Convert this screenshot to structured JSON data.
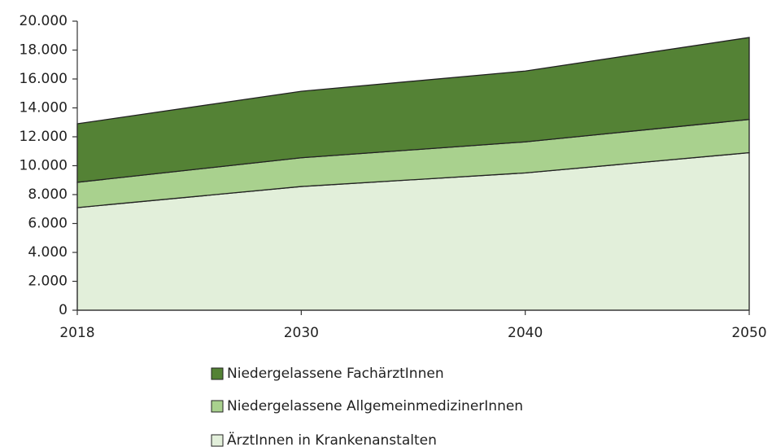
{
  "chart_data": {
    "type": "stacked-area",
    "categories": [
      "2018",
      "2030",
      "2040",
      "2050"
    ],
    "series": [
      {
        "name": "ÄrztInnen in Krankenanstalten",
        "color": "#e2efda",
        "values": [
          7100,
          8560,
          9500,
          10900
        ]
      },
      {
        "name": "Niedergelassene AllgemeinmedizinerInnen",
        "color": "#a9d18e",
        "values": [
          1750,
          1990,
          2150,
          2300
        ]
      },
      {
        "name": "Niedergelassene FachärztInnen",
        "color": "#548235",
        "values": [
          4050,
          4600,
          4900,
          5670
        ]
      }
    ],
    "ylim": [
      0,
      20000
    ],
    "yticks": [
      0,
      {
        "value": 2000,
        "label": "2.000"
      },
      {
        "value": 4000,
        "label": "4.000"
      },
      {
        "value": 6000,
        "label": "6.000"
      },
      {
        "value": 8000,
        "label": "8.000"
      },
      {
        "value": 10000,
        "label": "10.000"
      },
      {
        "value": 12000,
        "label": "12.000"
      },
      {
        "value": 14000,
        "label": "14.000"
      },
      {
        "value": 16000,
        "label": "16.000"
      },
      {
        "value": 18000,
        "label": "18.000"
      },
      {
        "value": 20000,
        "label": "20.000"
      }
    ],
    "grid": false,
    "legend": "bottom"
  }
}
